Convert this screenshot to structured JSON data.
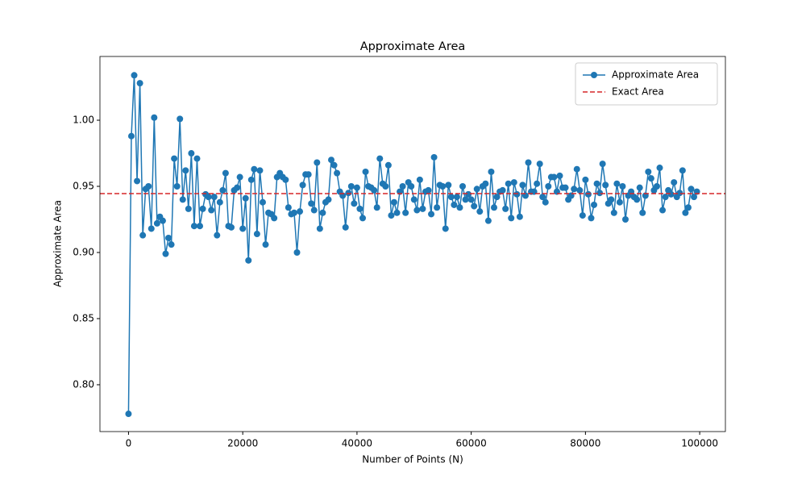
{
  "chart_data": {
    "type": "line",
    "title": "Approximate Area",
    "xlabel": "Number of Points (N)",
    "ylabel": "Approximate Area",
    "x": [
      0,
      500,
      1000,
      1500,
      2000,
      2500,
      3000,
      3500,
      4000,
      4500,
      5000,
      5500,
      6000,
      6500,
      7000,
      7500,
      8000,
      8500,
      9000,
      9500,
      10000,
      10500,
      11000,
      11500,
      12000,
      12500,
      13000,
      13500,
      14000,
      14500,
      15000,
      15500,
      16000,
      16500,
      17000,
      17500,
      18000,
      18500,
      19000,
      19500,
      20000,
      20500,
      21000,
      21500,
      22000,
      22500,
      23000,
      23500,
      24000,
      24500,
      25000,
      25500,
      26000,
      26500,
      27000,
      27500,
      28000,
      28500,
      29000,
      29500,
      30000,
      30500,
      31000,
      31500,
      32000,
      32500,
      33000,
      33500,
      34000,
      34500,
      35000,
      35500,
      36000,
      36500,
      37000,
      37500,
      38000,
      38500,
      39000,
      39500,
      40000,
      40500,
      41000,
      41500,
      42000,
      42500,
      43000,
      43500,
      44000,
      44500,
      45000,
      45500,
      46000,
      46500,
      47000,
      47500,
      48000,
      48500,
      49000,
      49500,
      50000,
      50500,
      51000,
      51500,
      52000,
      52500,
      53000,
      53500,
      54000,
      54500,
      55000,
      55500,
      56000,
      56500,
      57000,
      57500,
      58000,
      58500,
      59000,
      59500,
      60000,
      60500,
      61000,
      61500,
      62000,
      62500,
      63000,
      63500,
      64000,
      64500,
      65000,
      65500,
      66000,
      66500,
      67000,
      67500,
      68000,
      68500,
      69000,
      69500,
      70000,
      70500,
      71000,
      71500,
      72000,
      72500,
      73000,
      73500,
      74000,
      74500,
      75000,
      75500,
      76000,
      76500,
      77000,
      77500,
      78000,
      78500,
      79000,
      79500,
      80000,
      80500,
      81000,
      81500,
      82000,
      82500,
      83000,
      83500,
      84000,
      84500,
      85000,
      85500,
      86000,
      86500,
      87000,
      87500,
      88000,
      88500,
      89000,
      89500,
      90000,
      90500,
      91000,
      91500,
      92000,
      92500,
      93000,
      93500,
      94000,
      94500,
      95000,
      95500,
      96000,
      96500,
      97000,
      97500,
      98000,
      98500,
      99000,
      99500
    ],
    "series": [
      {
        "name": "Approximate Area",
        "color": "#1f77b4",
        "values": [
          0.778,
          0.988,
          1.034,
          0.954,
          1.028,
          0.913,
          0.948,
          0.95,
          0.918,
          1.002,
          0.922,
          0.927,
          0.924,
          0.899,
          0.911,
          0.906,
          0.971,
          0.95,
          1.001,
          0.94,
          0.962,
          0.933,
          0.975,
          0.92,
          0.971,
          0.92,
          0.933,
          0.944,
          0.942,
          0.932,
          0.942,
          0.913,
          0.938,
          0.947,
          0.96,
          0.92,
          0.919,
          0.947,
          0.949,
          0.957,
          0.918,
          0.941,
          0.894,
          0.955,
          0.963,
          0.914,
          0.962,
          0.938,
          0.906,
          0.93,
          0.929,
          0.926,
          0.957,
          0.96,
          0.957,
          0.955,
          0.934,
          0.929,
          0.93,
          0.9,
          0.931,
          0.951,
          0.959,
          0.959,
          0.937,
          0.932,
          0.968,
          0.918,
          0.93,
          0.938,
          0.94,
          0.97,
          0.966,
          0.96,
          0.946,
          0.943,
          0.919,
          0.945,
          0.95,
          0.937,
          0.949,
          0.933,
          0.926,
          0.961,
          0.95,
          0.949,
          0.947,
          0.934,
          0.971,
          0.952,
          0.95,
          0.966,
          0.928,
          0.938,
          0.93,
          0.946,
          0.95,
          0.93,
          0.953,
          0.95,
          0.94,
          0.932,
          0.955,
          0.933,
          0.946,
          0.947,
          0.929,
          0.972,
          0.934,
          0.951,
          0.95,
          0.918,
          0.951,
          0.942,
          0.936,
          0.942,
          0.934,
          0.95,
          0.94,
          0.944,
          0.94,
          0.935,
          0.948,
          0.931,
          0.95,
          0.952,
          0.924,
          0.961,
          0.934,
          0.942,
          0.946,
          0.947,
          0.933,
          0.952,
          0.926,
          0.953,
          0.944,
          0.927,
          0.951,
          0.943,
          0.968,
          0.946,
          0.946,
          0.952,
          0.967,
          0.942,
          0.938,
          0.95,
          0.957,
          0.957,
          0.946,
          0.958,
          0.949,
          0.949,
          0.94,
          0.943,
          0.948,
          0.963,
          0.947,
          0.928,
          0.955,
          0.944,
          0.926,
          0.936,
          0.952,
          0.945,
          0.967,
          0.951,
          0.937,
          0.94,
          0.93,
          0.952,
          0.938,
          0.95,
          0.925,
          0.943,
          0.946,
          0.942,
          0.94,
          0.949,
          0.93,
          0.943,
          0.961,
          0.956,
          0.947,
          0.95,
          0.964,
          0.932,
          0.942,
          0.947,
          0.944,
          0.953,
          0.942,
          0.945,
          0.962,
          0.93,
          0.934,
          0.948,
          0.942,
          0.946
        ]
      }
    ],
    "reference_line": {
      "name": "Exact Area",
      "value": 0.9445,
      "color": "#d62728"
    },
    "xlim": [
      -5000,
      104500
    ],
    "xticks": [
      0,
      20000,
      40000,
      60000,
      80000,
      100000
    ],
    "ylim": [
      0.7646,
      1.0482
    ],
    "yticks": [
      {
        "value": 0.8,
        "label": "0.80"
      },
      {
        "value": 0.85,
        "label": "0.85"
      },
      {
        "value": 0.9,
        "label": "0.90"
      },
      {
        "value": 0.95,
        "label": "0.95"
      },
      {
        "value": 1.0,
        "label": "1.00"
      }
    ],
    "legend": "upper right",
    "grid": false
  }
}
